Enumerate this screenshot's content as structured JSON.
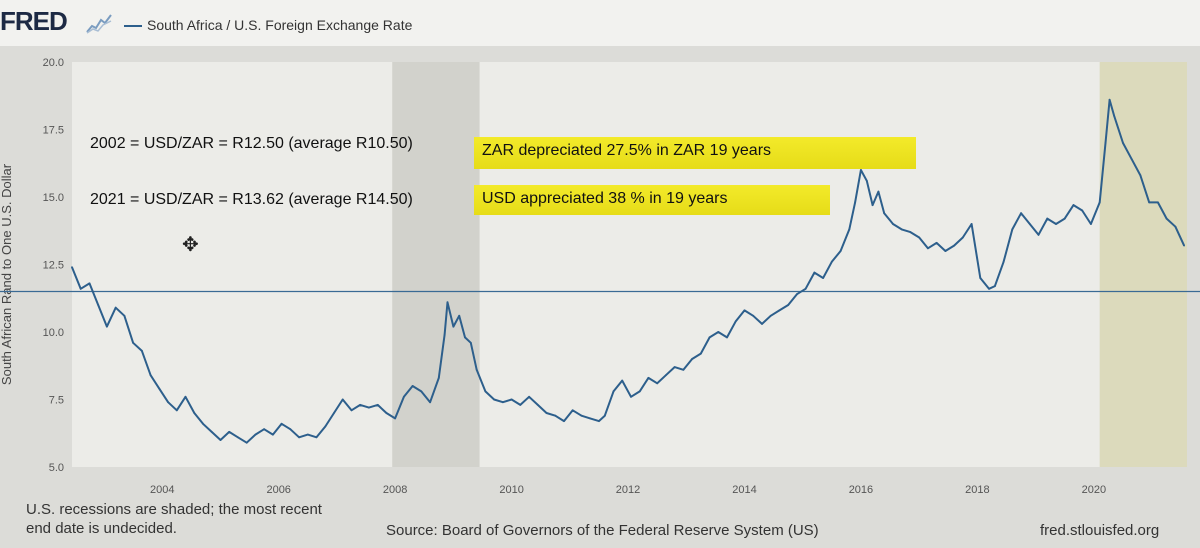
{
  "header": {
    "logo": "FRED",
    "legend_label": "South Africa / U.S. Foreign Exchange Rate"
  },
  "annotations": {
    "line1": "2002 = USD/ZAR = R12.50 (average R10.50)",
    "line2": "2021 = USD/ZAR = R13.62 (average R14.50)",
    "highlight1": "ZAR depreciated 27.5% in ZAR 19 years",
    "highlight2": "USD appreciated 38 % in 19 years"
  },
  "footer": {
    "recession_note_1": "U.S. recessions are shaded; the most recent",
    "recession_note_2": "end date is undecided.",
    "source": "Source: Board of Governors of the Federal Reserve System (US)",
    "brand": "fred.stlouisfed.org"
  },
  "colors": {
    "series": "#2d5f8c",
    "recession_shade": "#d2d2cc",
    "recent_recession_shade": "#dcdabc",
    "highlight": "#f0e622"
  },
  "chart_data": {
    "type": "line",
    "title": "South Africa / U.S. Foreign Exchange Rate",
    "ylabel": "South African Rand to One U.S. Dollar",
    "xlabel": "",
    "xlim": [
      2002.45,
      2021.6
    ],
    "ylim": [
      5.0,
      20.0
    ],
    "x_ticks": [
      "2004",
      "2006",
      "2008",
      "2010",
      "2012",
      "2014",
      "2016",
      "2018",
      "2020"
    ],
    "y_ticks": [
      "5.0",
      "7.5",
      "10.0",
      "12.5",
      "15.0",
      "17.5",
      "20.0"
    ],
    "reference_line": 11.5,
    "recessions": [
      [
        2007.95,
        2009.45
      ],
      [
        2020.1,
        2021.6
      ]
    ],
    "series": [
      {
        "name": "South Africa / U.S. Foreign Exchange Rate",
        "points": [
          [
            2002.45,
            12.4
          ],
          [
            2002.6,
            11.6
          ],
          [
            2002.75,
            11.8
          ],
          [
            2002.9,
            11.0
          ],
          [
            2003.05,
            10.2
          ],
          [
            2003.2,
            10.9
          ],
          [
            2003.35,
            10.6
          ],
          [
            2003.5,
            9.6
          ],
          [
            2003.65,
            9.3
          ],
          [
            2003.8,
            8.4
          ],
          [
            2003.95,
            7.9
          ],
          [
            2004.1,
            7.4
          ],
          [
            2004.25,
            7.1
          ],
          [
            2004.4,
            7.6
          ],
          [
            2004.55,
            7.0
          ],
          [
            2004.7,
            6.6
          ],
          [
            2004.85,
            6.3
          ],
          [
            2005.0,
            6.0
          ],
          [
            2005.15,
            6.3
          ],
          [
            2005.3,
            6.1
          ],
          [
            2005.45,
            5.9
          ],
          [
            2005.6,
            6.2
          ],
          [
            2005.75,
            6.4
          ],
          [
            2005.9,
            6.2
          ],
          [
            2006.05,
            6.6
          ],
          [
            2006.2,
            6.4
          ],
          [
            2006.35,
            6.1
          ],
          [
            2006.5,
            6.2
          ],
          [
            2006.65,
            6.1
          ],
          [
            2006.8,
            6.5
          ],
          [
            2006.95,
            7.0
          ],
          [
            2007.1,
            7.5
          ],
          [
            2007.25,
            7.1
          ],
          [
            2007.4,
            7.3
          ],
          [
            2007.55,
            7.2
          ],
          [
            2007.7,
            7.3
          ],
          [
            2007.85,
            7.0
          ],
          [
            2008.0,
            6.8
          ],
          [
            2008.15,
            7.6
          ],
          [
            2008.3,
            8.0
          ],
          [
            2008.45,
            7.8
          ],
          [
            2008.6,
            7.4
          ],
          [
            2008.75,
            8.3
          ],
          [
            2008.85,
            9.9
          ],
          [
            2008.9,
            11.1
          ],
          [
            2009.0,
            10.2
          ],
          [
            2009.1,
            10.6
          ],
          [
            2009.2,
            9.8
          ],
          [
            2009.3,
            9.6
          ],
          [
            2009.4,
            8.6
          ],
          [
            2009.55,
            7.8
          ],
          [
            2009.7,
            7.5
          ],
          [
            2009.85,
            7.4
          ],
          [
            2010.0,
            7.5
          ],
          [
            2010.15,
            7.3
          ],
          [
            2010.3,
            7.6
          ],
          [
            2010.45,
            7.3
          ],
          [
            2010.6,
            7.0
          ],
          [
            2010.75,
            6.9
          ],
          [
            2010.9,
            6.7
          ],
          [
            2011.05,
            7.1
          ],
          [
            2011.2,
            6.9
          ],
          [
            2011.35,
            6.8
          ],
          [
            2011.5,
            6.7
          ],
          [
            2011.6,
            6.9
          ],
          [
            2011.75,
            7.8
          ],
          [
            2011.9,
            8.2
          ],
          [
            2012.05,
            7.6
          ],
          [
            2012.2,
            7.8
          ],
          [
            2012.35,
            8.3
          ],
          [
            2012.5,
            8.1
          ],
          [
            2012.65,
            8.4
          ],
          [
            2012.8,
            8.7
          ],
          [
            2012.95,
            8.6
          ],
          [
            2013.1,
            9.0
          ],
          [
            2013.25,
            9.2
          ],
          [
            2013.4,
            9.8
          ],
          [
            2013.55,
            10.0
          ],
          [
            2013.7,
            9.8
          ],
          [
            2013.85,
            10.4
          ],
          [
            2014.0,
            10.8
          ],
          [
            2014.15,
            10.6
          ],
          [
            2014.3,
            10.3
          ],
          [
            2014.45,
            10.6
          ],
          [
            2014.6,
            10.8
          ],
          [
            2014.75,
            11.0
          ],
          [
            2014.9,
            11.4
          ],
          [
            2015.05,
            11.6
          ],
          [
            2015.2,
            12.2
          ],
          [
            2015.35,
            12.0
          ],
          [
            2015.5,
            12.6
          ],
          [
            2015.65,
            13.0
          ],
          [
            2015.8,
            13.8
          ],
          [
            2015.9,
            14.8
          ],
          [
            2016.0,
            16.0
          ],
          [
            2016.1,
            15.6
          ],
          [
            2016.2,
            14.7
          ],
          [
            2016.3,
            15.2
          ],
          [
            2016.4,
            14.4
          ],
          [
            2016.55,
            14.0
          ],
          [
            2016.7,
            13.8
          ],
          [
            2016.85,
            13.7
          ],
          [
            2017.0,
            13.5
          ],
          [
            2017.15,
            13.1
          ],
          [
            2017.3,
            13.3
          ],
          [
            2017.45,
            13.0
          ],
          [
            2017.6,
            13.2
          ],
          [
            2017.75,
            13.5
          ],
          [
            2017.9,
            14.0
          ],
          [
            2018.05,
            12.0
          ],
          [
            2018.2,
            11.6
          ],
          [
            2018.3,
            11.7
          ],
          [
            2018.45,
            12.6
          ],
          [
            2018.6,
            13.8
          ],
          [
            2018.75,
            14.4
          ],
          [
            2018.9,
            14.0
          ],
          [
            2019.05,
            13.6
          ],
          [
            2019.2,
            14.2
          ],
          [
            2019.35,
            14.0
          ],
          [
            2019.5,
            14.2
          ],
          [
            2019.65,
            14.7
          ],
          [
            2019.8,
            14.5
          ],
          [
            2019.95,
            14.0
          ],
          [
            2020.1,
            14.8
          ],
          [
            2020.2,
            17.0
          ],
          [
            2020.27,
            18.6
          ],
          [
            2020.35,
            18.0
          ],
          [
            2020.5,
            17.0
          ],
          [
            2020.65,
            16.4
          ],
          [
            2020.8,
            15.8
          ],
          [
            2020.95,
            14.8
          ],
          [
            2021.1,
            14.8
          ],
          [
            2021.25,
            14.2
          ],
          [
            2021.4,
            13.9
          ],
          [
            2021.55,
            13.2
          ]
        ]
      }
    ]
  }
}
